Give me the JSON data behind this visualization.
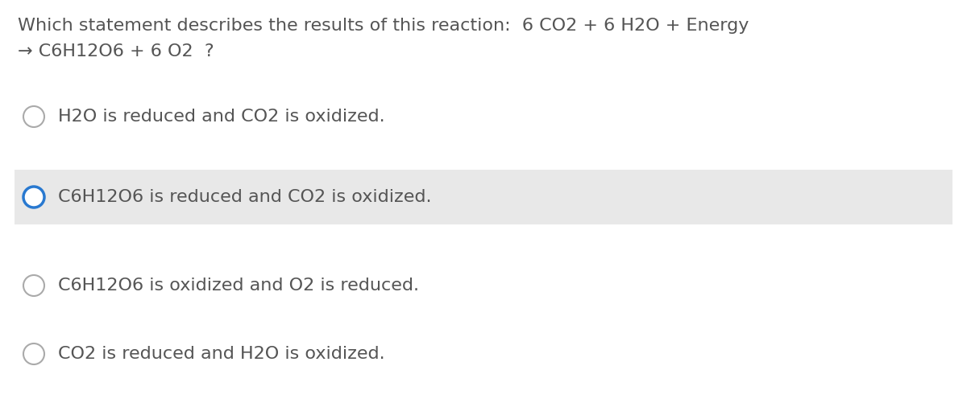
{
  "background_color": "#ffffff",
  "question_line1": "Which statement describes the results of this reaction:  6 CO2 + 6 H2O + Energy",
  "question_line2": "→ C6H12O6 + 6 O2  ?",
  "options": [
    {
      "text": "H2O is reduced and CO2 is oxidized.",
      "selected": false,
      "highlighted": false
    },
    {
      "text": "C6H12O6 is reduced and CO2 is oxidized.",
      "selected": true,
      "highlighted": true
    },
    {
      "text": "C6H12O6 is oxidized and O2 is reduced.",
      "selected": false,
      "highlighted": false
    },
    {
      "text": "CO2 is reduced and H2O is oxidized.",
      "selected": false,
      "highlighted": false
    }
  ],
  "question_fontsize": 16,
  "option_fontsize": 16,
  "question_color": "#555555",
  "option_color": "#555555",
  "circle_color_unselected": "#aaaaaa",
  "circle_color_selected": "#2979d0",
  "highlight_color": "#e8e8e8",
  "figwidth": 12.0,
  "figheight": 5.01,
  "dpi": 100
}
